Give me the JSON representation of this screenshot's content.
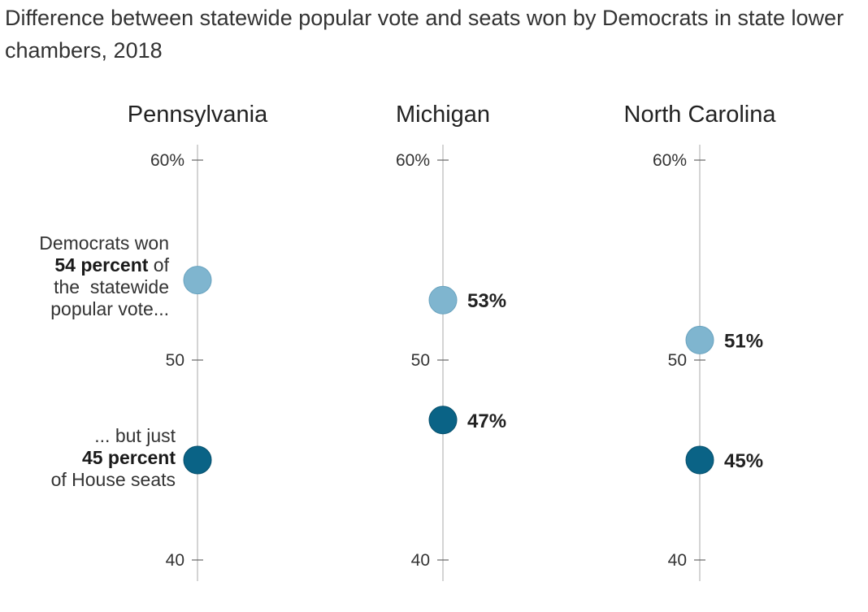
{
  "title": "Difference between statewide popular vote and seats won by Democrats in state lower chambers, 2018",
  "colors": {
    "vote": "#7fb5cf",
    "seats": "#0a6386",
    "axis": "#aaaaaa"
  },
  "annotations": {
    "vote_line1": "Democrats won",
    "vote_bold": "54 percent",
    "vote_rest1": " of",
    "vote_line3": "the  statewide",
    "vote_line4": "popular vote...",
    "seats_line1": "... but just",
    "seats_bold": "45 percent",
    "seats_line3": "of House seats"
  },
  "chart_data": {
    "type": "scatter",
    "title": "Difference between statewide popular vote and seats won by Democrats in state lower chambers, 2018",
    "ylim": [
      40,
      60
    ],
    "yticks": [
      {
        "value": 60,
        "label": "60%"
      },
      {
        "value": 50,
        "label": "50"
      },
      {
        "value": 40,
        "label": "40"
      }
    ],
    "panels": [
      {
        "name": "Pennsylvania",
        "popular_vote": 54,
        "seats": 45,
        "vote_label": "",
        "seats_label": ""
      },
      {
        "name": "Michigan",
        "popular_vote": 53,
        "seats": 47,
        "vote_label": "53%",
        "seats_label": "47%"
      },
      {
        "name": "North Carolina",
        "popular_vote": 51,
        "seats": 45,
        "vote_label": "51%",
        "seats_label": "45%"
      }
    ]
  }
}
